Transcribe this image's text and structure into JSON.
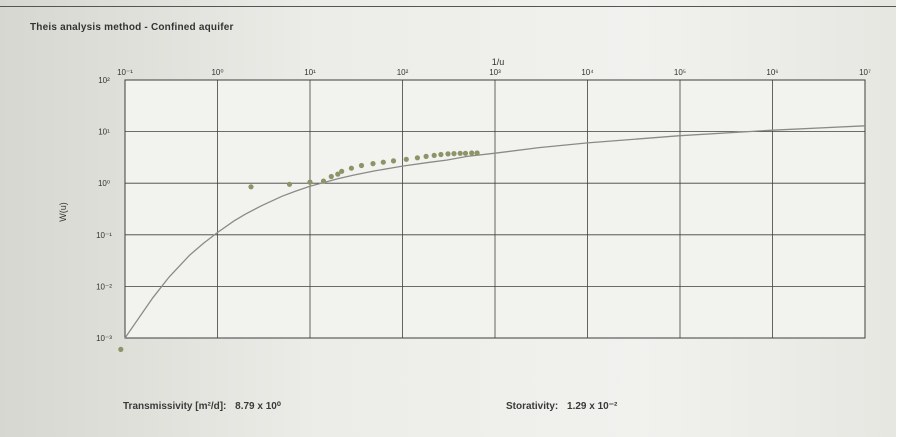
{
  "chart_data": {
    "type": "scatter",
    "title": "Theis analysis method - Confined aquifer",
    "xlabel": "1/u",
    "ylabel": "W(u)",
    "x_scale": "log",
    "y_scale": "log",
    "xlim": [
      0.1,
      10000000
    ],
    "ylim": [
      0.001,
      100
    ],
    "x_ticks": [
      "10⁻¹",
      "10⁰",
      "10¹",
      "10²",
      "10³",
      "10⁴",
      "10⁵",
      "10⁶",
      "10⁷"
    ],
    "y_ticks": [
      "10²",
      "10¹",
      "10⁰",
      "10⁻¹",
      "10⁻²",
      "10⁻³"
    ],
    "grid": true,
    "series": [
      {
        "kind": "curve",
        "x": [
          0.1,
          0.2,
          0.3,
          0.5,
          0.7,
          1,
          1.5,
          2,
          3,
          5,
          7,
          10,
          20,
          30,
          50,
          100,
          200,
          300,
          500,
          1000,
          3000,
          10000,
          100000,
          1000000,
          10000000
        ],
        "y": [
          0.001,
          0.006,
          0.0152,
          0.0404,
          0.0677,
          0.1107,
          0.1844,
          0.2508,
          0.3663,
          0.5598,
          0.7024,
          0.8741,
          1.2227,
          1.4422,
          1.7332,
          2.1466,
          2.5573,
          2.8029,
          3.3027,
          3.8064,
          4.8965,
          6.0337,
          8.3362,
          10.6388,
          12.9413
        ]
      },
      {
        "kind": "points",
        "x": [
          0.09,
          2.3,
          6,
          10,
          14,
          17,
          20,
          22,
          28,
          36,
          48,
          62,
          80,
          110,
          145,
          180,
          220,
          260,
          310,
          360,
          420,
          480,
          560,
          640
        ],
        "y": [
          0.0006,
          0.85,
          0.95,
          1.05,
          1.1,
          1.35,
          1.5,
          1.7,
          1.95,
          2.2,
          2.4,
          2.55,
          2.7,
          2.9,
          3.1,
          3.3,
          3.45,
          3.6,
          3.7,
          3.75,
          3.8,
          3.8,
          3.85,
          3.85
        ]
      }
    ]
  },
  "results": {
    "transmissivity_label": "Transmissivity [m²/d]:",
    "transmissivity_value": "8.79 x 10⁰",
    "storativity_label": "Storativity:",
    "storativity_value": "1.29 x 10⁻²"
  },
  "colors": {
    "grid": "#3f3f3f",
    "curve": "#8a8a86",
    "points": "#8c9468",
    "plot_bg": "#f2f2ef"
  }
}
